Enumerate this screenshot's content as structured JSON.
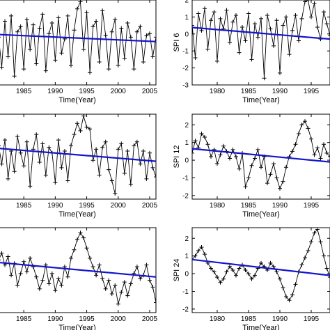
{
  "chart_data": [
    {
      "id": "p1",
      "type": "line",
      "title": "",
      "xlabel": "Time(Year)",
      "ylabel": "",
      "xlim": [
        1981,
        2006
      ],
      "ylim": [
        -2.4,
        2.4
      ],
      "xticks": [
        1985,
        1990,
        1995,
        2000,
        2005
      ],
      "yticks": [],
      "series": [
        {
          "role": "data",
          "color": "#000000",
          "marker": "+",
          "x": [
            1981.0,
            1981.5,
            1982.0,
            1982.5,
            1983.0,
            1983.5,
            1984.0,
            1984.5,
            1985.0,
            1985.5,
            1986.0,
            1986.5,
            1987.0,
            1987.5,
            1988.0,
            1988.5,
            1989.0,
            1989.5,
            1990.0,
            1990.5,
            1991.0,
            1991.5,
            1992.0,
            1992.5,
            1993.0,
            1993.5,
            1994.0,
            1994.5,
            1995.0,
            1995.5,
            1996.0,
            1996.5,
            1997.0,
            1997.5,
            1998.0,
            1998.5,
            1999.0,
            1999.5,
            2000.0,
            2000.5,
            2001.0,
            2001.5,
            2002.0,
            2002.5,
            2003.0,
            2003.5,
            2004.0,
            2004.5,
            2005.0,
            2005.5,
            2006.0
          ],
          "y": [
            0.3,
            -1.4,
            1.2,
            -0.8,
            1.5,
            -1.9,
            0.6,
            0.9,
            -1.5,
            1.3,
            -0.4,
            1.0,
            -1.2,
            0.8,
            1.6,
            -1.6,
            0.5,
            1.1,
            -1.0,
            1.4,
            -0.6,
            0.2,
            1.5,
            -1.3,
            0.7,
            1.9,
            2.3,
            -0.4,
            1.7,
            -1.7,
            0.9,
            1.2,
            -1.1,
            1.8,
            0.4,
            -1.5,
            0.6,
            1.3,
            -1.3,
            0.8,
            -0.9,
            1.1,
            0.3,
            -1.5,
            0.6,
            0.9,
            -1.1,
            0.4,
            0.5,
            -0.8,
            0.3
          ]
        },
        {
          "role": "trend",
          "color": "#1414cc",
          "x": [
            1981,
            2006
          ],
          "y": [
            0.45,
            0.05
          ]
        }
      ]
    },
    {
      "id": "p2",
      "type": "line",
      "title": "",
      "xlabel": "Time(Year)",
      "ylabel": "SPI 6",
      "xlim": [
        1976,
        1998
      ],
      "ylim": [
        -3,
        2
      ],
      "xticks": [
        1980,
        1985,
        1990,
        1995
      ],
      "yticks": [
        -3,
        -2,
        -1,
        0,
        1,
        2
      ],
      "series": [
        {
          "role": "data",
          "color": "#000000",
          "marker": "+",
          "x": [
            1976.0,
            1976.5,
            1977.0,
            1977.5,
            1978.0,
            1978.5,
            1979.0,
            1979.5,
            1980.0,
            1980.5,
            1981.0,
            1981.5,
            1982.0,
            1982.5,
            1983.0,
            1983.5,
            1984.0,
            1984.5,
            1985.0,
            1985.5,
            1986.0,
            1986.5,
            1987.0,
            1987.5,
            1988.0,
            1988.5,
            1989.0,
            1989.5,
            1990.0,
            1990.5,
            1991.0,
            1991.5,
            1992.0,
            1992.5,
            1993.0,
            1993.5,
            1994.0,
            1994.5,
            1995.0,
            1995.5,
            1996.0,
            1996.5,
            1997.0,
            1997.5,
            1998.0
          ],
          "y": [
            0.5,
            -1.4,
            1.2,
            0.2,
            1.5,
            -0.9,
            0.8,
            1.3,
            -1.6,
            0.9,
            0.3,
            1.4,
            -0.5,
            0.7,
            1.1,
            -1.1,
            0.4,
            -0.4,
            1.2,
            -1.5,
            0.6,
            -0.2,
            0.9,
            -2.6,
            1.1,
            0.3,
            -0.7,
            0.8,
            -2.3,
            0.5,
            1.0,
            -1.2,
            0.2,
            1.1,
            -0.4,
            0.9,
            1.9,
            2.0,
            1.0,
            1.8,
            0.4,
            -0.3,
            1.3,
            0.6,
            -0.1
          ]
        },
        {
          "role": "trend",
          "color": "#1414cc",
          "x": [
            1976,
            1998
          ],
          "y": [
            0.38,
            -0.3
          ]
        }
      ]
    },
    {
      "id": "p3",
      "type": "line",
      "title": "",
      "xlabel": "Time(Year)",
      "ylabel": "",
      "xlim": [
        1981,
        2006
      ],
      "ylim": [
        -2.3,
        2.3
      ],
      "xticks": [
        1985,
        1990,
        1995,
        2000,
        2005
      ],
      "yticks": [],
      "series": [
        {
          "role": "data",
          "color": "#000000",
          "marker": "+",
          "x": [
            1981.0,
            1981.5,
            1982.0,
            1982.5,
            1983.0,
            1983.5,
            1984.0,
            1984.5,
            1985.0,
            1985.5,
            1986.0,
            1986.5,
            1987.0,
            1987.5,
            1988.0,
            1988.5,
            1989.0,
            1989.5,
            1990.0,
            1990.5,
            1991.0,
            1991.5,
            1992.0,
            1992.5,
            1993.0,
            1993.5,
            1994.0,
            1994.5,
            1995.0,
            1995.5,
            1996.0,
            1996.5,
            1997.0,
            1997.5,
            1998.0,
            1998.5,
            1999.0,
            1999.5,
            2000.0,
            2000.5,
            2001.0,
            2001.5,
            2002.0,
            2002.5,
            2003.0,
            2003.5,
            2004.0,
            2004.5,
            2005.0,
            2005.5,
            2006.0
          ],
          "y": [
            0.6,
            -0.4,
            0.9,
            -1.2,
            0.3,
            -0.8,
            1.1,
            0.2,
            -0.5,
            0.8,
            -1.6,
            0.4,
            1.2,
            -0.3,
            0.7,
            -1.0,
            0.5,
            0.2,
            -1.4,
            0.9,
            -0.6,
            0.3,
            -1.3,
            0.6,
            1.2,
            1.8,
            1.4,
            2.2,
            1.6,
            1.5,
            -0.2,
            0.4,
            -1.0,
            0.5,
            0.8,
            -0.7,
            -1.3,
            -2.0,
            0.4,
            0.7,
            -0.9,
            0.3,
            -1.5,
            0.6,
            0.8,
            -0.4,
            0.3,
            -1.2,
            0.2,
            -0.6,
            -1.1
          ]
        },
        {
          "role": "trend",
          "color": "#1414cc",
          "x": [
            1981,
            2006
          ],
          "y": [
            0.45,
            -0.25
          ]
        }
      ]
    },
    {
      "id": "p4",
      "type": "line",
      "title": "",
      "xlabel": "Time(Year)",
      "ylabel": "SPI 12",
      "xlim": [
        1976,
        1998
      ],
      "ylim": [
        -2.2,
        2.6
      ],
      "xticks": [
        1980,
        1985,
        1990,
        1995
      ],
      "yticks": [
        -2,
        -1,
        0,
        1,
        2
      ],
      "series": [
        {
          "role": "data",
          "color": "#000000",
          "marker": "+",
          "x": [
            1976.0,
            1976.5,
            1977.0,
            1977.5,
            1978.0,
            1978.5,
            1979.0,
            1979.5,
            1980.0,
            1980.5,
            1981.0,
            1981.5,
            1982.0,
            1982.5,
            1983.0,
            1983.5,
            1984.0,
            1984.5,
            1985.0,
            1985.5,
            1986.0,
            1986.5,
            1987.0,
            1987.5,
            1988.0,
            1988.5,
            1989.0,
            1989.5,
            1990.0,
            1990.5,
            1991.0,
            1991.5,
            1992.0,
            1992.5,
            1993.0,
            1993.5,
            1994.0,
            1994.5,
            1995.0,
            1995.5,
            1996.0,
            1996.5,
            1997.0,
            1997.5,
            1998.0
          ],
          "y": [
            0.4,
            1.1,
            0.7,
            1.5,
            1.3,
            0.9,
            0.2,
            0.6,
            -0.2,
            0.3,
            0.8,
            0.5,
            0.1,
            0.6,
            0.2,
            -0.5,
            0.4,
            -1.5,
            -1.0,
            -0.3,
            0.1,
            0.6,
            -0.4,
            0.2,
            -1.3,
            -0.8,
            -0.2,
            -1.0,
            -1.6,
            -1.2,
            -0.4,
            0.2,
            0.5,
            0.9,
            1.5,
            2.0,
            2.2,
            1.8,
            1.2,
            0.3,
            0.7,
            0.1,
            0.9,
            0.4,
            0.2
          ]
        },
        {
          "role": "trend",
          "color": "#1414cc",
          "x": [
            1976,
            1998
          ],
          "y": [
            0.65,
            -0.1
          ]
        }
      ]
    },
    {
      "id": "p5",
      "type": "line",
      "title": "",
      "xlabel": "Time(Year)",
      "ylabel": "",
      "xlim": [
        1981,
        2006
      ],
      "ylim": [
        -2.6,
        2.4
      ],
      "xticks": [
        1985,
        1990,
        1995,
        2000,
        2005
      ],
      "yticks": [],
      "series": [
        {
          "role": "data",
          "color": "#000000",
          "marker": "+",
          "x": [
            1981.0,
            1981.5,
            1982.0,
            1982.5,
            1983.0,
            1983.5,
            1984.0,
            1984.5,
            1985.0,
            1985.5,
            1986.0,
            1986.5,
            1987.0,
            1987.5,
            1988.0,
            1988.5,
            1989.0,
            1989.5,
            1990.0,
            1990.5,
            1991.0,
            1991.5,
            1992.0,
            1992.5,
            1993.0,
            1993.5,
            1994.0,
            1994.5,
            1995.0,
            1995.5,
            1996.0,
            1996.5,
            1997.0,
            1997.5,
            1998.0,
            1998.5,
            1999.0,
            1999.5,
            2000.0,
            2000.5,
            2001.0,
            2001.5,
            2002.0,
            2002.5,
            2003.0,
            2003.5,
            2004.0,
            2004.5,
            2005.0,
            2005.5,
            2006.0
          ],
          "y": [
            0.5,
            0.9,
            0.2,
            0.7,
            -0.4,
            0.3,
            -1.0,
            -0.3,
            0.4,
            -0.2,
            0.6,
            0.1,
            -0.5,
            -1.2,
            -0.7,
            0.2,
            -0.9,
            -0.3,
            -1.3,
            -0.6,
            -1.0,
            0.1,
            -0.5,
            0.6,
            1.1,
            1.7,
            2.1,
            1.8,
            1.2,
            0.6,
            0.1,
            -0.4,
            0.2,
            -0.6,
            -1.2,
            -0.7,
            -1.5,
            -1.0,
            -2.1,
            -1.4,
            -0.8,
            -1.6,
            -0.9,
            -0.3,
            0.1,
            -0.6,
            -0.4,
            0.2,
            -0.7,
            -1.1,
            -2.0
          ]
        },
        {
          "role": "trend",
          "color": "#1414cc",
          "x": [
            1981,
            2006
          ],
          "y": [
            0.35,
            -0.5
          ]
        }
      ]
    },
    {
      "id": "p6",
      "type": "line",
      "title": "",
      "xlabel": "Time(Year)",
      "ylabel": "SPI 24",
      "xlim": [
        1976,
        1998
      ],
      "ylim": [
        -2.2,
        2.6
      ],
      "xticks": [
        1980,
        1985,
        1990,
        1995
      ],
      "yticks": [
        -2,
        -1,
        0,
        1,
        2
      ],
      "series": [
        {
          "role": "data",
          "color": "#000000",
          "marker": "+",
          "x": [
            1976.0,
            1976.5,
            1977.0,
            1977.5,
            1978.0,
            1978.5,
            1979.0,
            1979.5,
            1980.0,
            1980.5,
            1981.0,
            1981.5,
            1982.0,
            1982.5,
            1983.0,
            1983.5,
            1984.0,
            1984.5,
            1985.0,
            1985.5,
            1986.0,
            1986.5,
            1987.0,
            1987.5,
            1988.0,
            1988.5,
            1989.0,
            1989.5,
            1990.0,
            1990.5,
            1991.0,
            1991.5,
            1992.0,
            1992.5,
            1993.0,
            1993.5,
            1994.0,
            1994.5,
            1995.0,
            1995.5,
            1996.0,
            1996.5,
            1997.0,
            1997.5,
            1998.0
          ],
          "y": [
            0.8,
            1.0,
            1.3,
            1.5,
            1.1,
            0.6,
            0.3,
            0.1,
            -0.2,
            -0.5,
            -0.3,
            0.1,
            0.4,
            0.2,
            -0.1,
            0.3,
            0.5,
            0.2,
            0.0,
            -0.3,
            -0.1,
            0.3,
            0.6,
            0.4,
            0.2,
            0.6,
            0.4,
            0.1,
            -0.3,
            -0.8,
            -1.3,
            -1.5,
            -1.2,
            -0.6,
            0.1,
            0.5,
            0.9,
            1.3,
            1.8,
            2.3,
            2.5,
            1.8,
            1.0,
            0.3,
            -0.2
          ]
        },
        {
          "role": "trend",
          "color": "#1414cc",
          "x": [
            1976,
            1998
          ],
          "y": [
            0.8,
            -0.1
          ]
        }
      ]
    }
  ]
}
